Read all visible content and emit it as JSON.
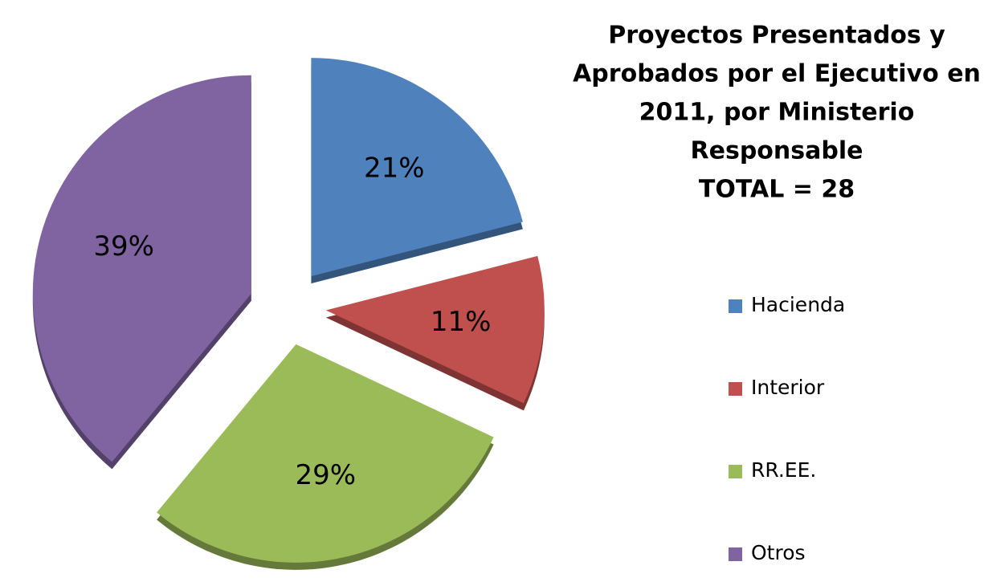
{
  "chart_data": {
    "type": "pie",
    "title": [
      "Proyectos Presentados y",
      "Aprobados por el Ejecutivo en",
      "2011, por Ministerio",
      "Responsable",
      "TOTAL = 28"
    ],
    "categories": [
      "Hacienda",
      "Interior",
      "RR.EE.",
      "Otros"
    ],
    "values": [
      21,
      11,
      29,
      39
    ],
    "value_labels": [
      "21%",
      "11%",
      "29%",
      "39%"
    ],
    "colors": [
      "#4f81bd",
      "#c0504d",
      "#9bbb59",
      "#8064a2"
    ],
    "legend": "right"
  }
}
